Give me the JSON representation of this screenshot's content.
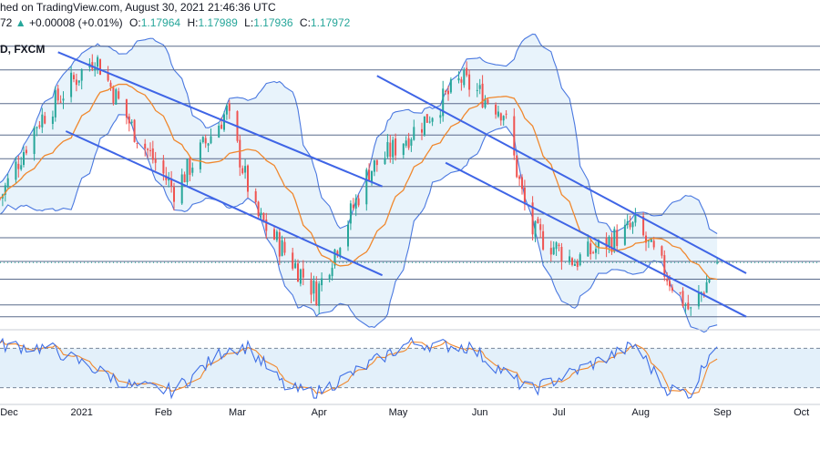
{
  "header": {
    "published": "hed on TradingView.com, August 30, 2021 21:46:36 UTC",
    "price_fragment": "72",
    "change_arrow": "▲",
    "change": "+0.00008 (+0.01%)",
    "o_label": "O:",
    "o_value": "1.17964",
    "h_label": "H:",
    "h_value": "1.17989",
    "l_label": "L:",
    "l_value": "1.17936",
    "c_label": "C:",
    "c_value": "1.17972",
    "symbol": "D, FXCM"
  },
  "colors": {
    "bull": "#26a69a",
    "bear": "#ef5350",
    "channel": "#3f65e6",
    "bands": "#4a78e0",
    "band_fill": "#e8f3fb",
    "ma": "#f0882e",
    "grid_h": "#5a6b8c",
    "stoch_k": "#3f6fe6",
    "stoch_d": "#f0882e",
    "stoch_fill": "#e3f0fa"
  },
  "axis": {
    "months": [
      "Dec",
      "2021",
      "Feb",
      "Mar",
      "Apr",
      "May",
      "Jun",
      "Jul",
      "Aug",
      "Sep",
      "Oct"
    ]
  },
  "chart_data": [
    {
      "type": "candlestick",
      "title": "",
      "symbol": "D, FXCM",
      "interval": "1D",
      "x_range": [
        "2020-12-01",
        "2021-10-08"
      ],
      "y_range_approx": [
        1.165,
        1.237
      ],
      "last_bar": {
        "open": 1.17964,
        "high": 1.17989,
        "low": 1.17936,
        "close": 1.17972,
        "change": 8e-05,
        "change_pct": 0.01
      },
      "close_path": [
        {
          "date": "2020-12-01",
          "close": 1.196
        },
        {
          "date": "2020-12-15",
          "close": 1.215
        },
        {
          "date": "2021-01-06",
          "close": 1.232
        },
        {
          "date": "2021-01-20",
          "close": 1.214
        },
        {
          "date": "2021-02-05",
          "close": 1.198
        },
        {
          "date": "2021-02-25",
          "close": 1.218
        },
        {
          "date": "2021-03-08",
          "close": 1.192
        },
        {
          "date": "2021-03-31",
          "close": 1.172
        },
        {
          "date": "2021-04-20",
          "close": 1.203
        },
        {
          "date": "2021-05-10",
          "close": 1.215
        },
        {
          "date": "2021-05-25",
          "close": 1.226
        },
        {
          "date": "2021-06-10",
          "close": 1.218
        },
        {
          "date": "2021-06-20",
          "close": 1.188
        },
        {
          "date": "2021-07-07",
          "close": 1.18
        },
        {
          "date": "2021-07-30",
          "close": 1.189
        },
        {
          "date": "2021-08-20",
          "close": 1.167
        },
        {
          "date": "2021-08-30",
          "close": 1.1797
        }
      ],
      "overlays": [
        "Bollinger Bands",
        "Moving average",
        "Descending channel lines",
        "Horizontal support/resistance lines"
      ]
    },
    {
      "type": "line",
      "name": "Stochastic oscillator",
      "ylim": [
        0,
        100
      ],
      "levels": [
        80,
        20
      ],
      "series": [
        {
          "values": [
            85,
            80,
            22,
            15,
            80,
            82,
            18,
            12,
            88,
            82,
            15,
            85,
            20,
            10,
            82,
            90
          ]
        }
      ],
      "keypoints_dates": [
        "2020-12-01",
        "2020-12-20",
        "2021-01-20",
        "2021-02-05",
        "2021-02-25",
        "2021-03-05",
        "2021-03-20",
        "2021-03-31",
        "2021-05-05",
        "2021-05-28",
        "2021-06-20",
        "2021-07-30",
        "2021-08-10",
        "2021-08-20",
        "2021-08-28",
        "2021-08-30"
      ]
    }
  ]
}
